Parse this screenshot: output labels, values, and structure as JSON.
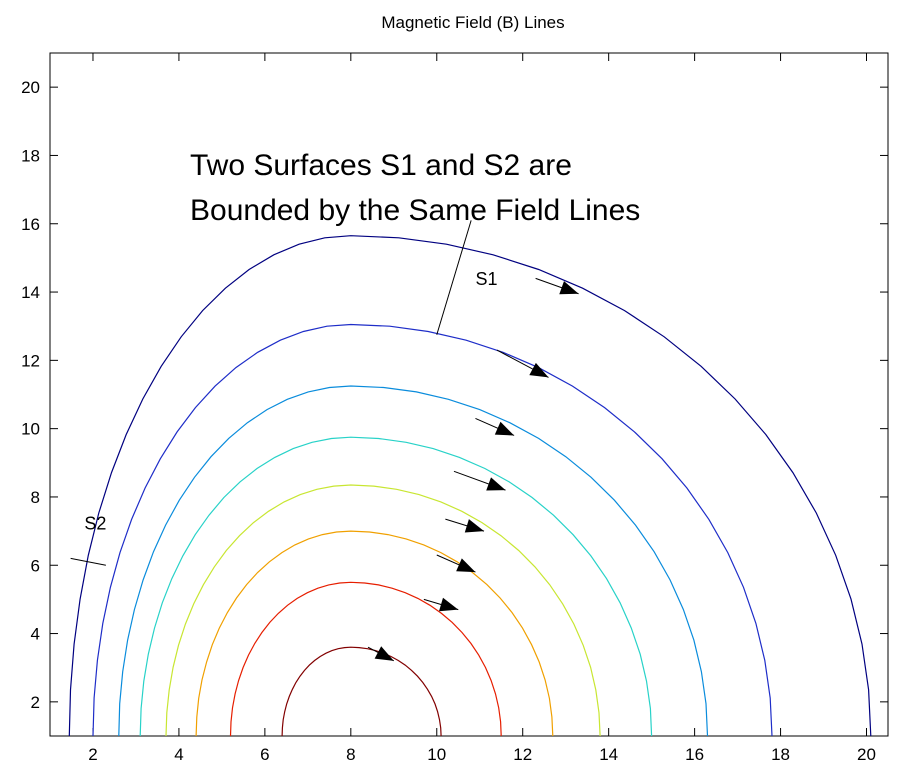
{
  "chart_data": {
    "type": "line",
    "title": "Magnetic Field (B) Lines",
    "xlabel": "",
    "ylabel": "",
    "xlim": [
      1,
      20.5
    ],
    "ylim": [
      1,
      21
    ],
    "xticks": [
      2,
      4,
      6,
      8,
      10,
      12,
      14,
      16,
      18,
      20
    ],
    "yticks": [
      2,
      4,
      6,
      8,
      10,
      12,
      14,
      16,
      18,
      20
    ],
    "grid": false,
    "annotation_lines": [
      "Two Surfaces S1 and S2 are",
      "Bounded by the Same Field Lines"
    ],
    "series": [
      {
        "color": "#000080",
        "apex": [
          8,
          15.65
        ],
        "x_left": 1.45,
        "x_right": 20.1,
        "y_bottom": 1.0
      },
      {
        "color": "#1e2dc8",
        "apex": [
          8,
          13.05
        ],
        "x_left": 2.0,
        "x_right": 17.8,
        "y_bottom": 1.0
      },
      {
        "color": "#0a8cdc",
        "apex": [
          8,
          11.25
        ],
        "x_left": 2.6,
        "x_right": 16.3,
        "y_bottom": 1.0
      },
      {
        "color": "#28d2c8",
        "apex": [
          8,
          9.75
        ],
        "x_left": 3.1,
        "x_right": 15.0,
        "y_bottom": 1.0
      },
      {
        "color": "#c8e632",
        "apex": [
          8,
          8.35
        ],
        "x_left": 3.7,
        "x_right": 13.8,
        "y_bottom": 1.0
      },
      {
        "color": "#f0a000",
        "apex": [
          8,
          7.0
        ],
        "x_left": 4.4,
        "x_right": 12.7,
        "y_bottom": 1.0
      },
      {
        "color": "#e61e00",
        "apex": [
          8,
          5.5
        ],
        "x_left": 5.2,
        "x_right": 11.5,
        "y_bottom": 1.0
      },
      {
        "color": "#820000",
        "apex": [
          8,
          3.6
        ],
        "x_left": 6.4,
        "x_right": 10.1,
        "y_bottom": 1.0
      }
    ],
    "arrows": [
      {
        "from": [
          12.3,
          14.4
        ],
        "to": [
          13.3,
          13.95
        ]
      },
      {
        "from": [
          11.4,
          12.3
        ],
        "to": [
          12.6,
          11.5
        ]
      },
      {
        "from": [
          10.9,
          10.3
        ],
        "to": [
          11.8,
          9.8
        ]
      },
      {
        "from": [
          10.4,
          8.75
        ],
        "to": [
          11.6,
          8.2
        ]
      },
      {
        "from": [
          10.2,
          7.35
        ],
        "to": [
          11.1,
          7.0
        ]
      },
      {
        "from": [
          10.0,
          6.3
        ],
        "to": [
          10.9,
          5.8
        ]
      },
      {
        "from": [
          9.7,
          5.0
        ],
        "to": [
          10.5,
          4.7
        ]
      },
      {
        "from": [
          8.4,
          3.6
        ],
        "to": [
          9.0,
          3.2
        ]
      }
    ],
    "surfaces": [
      {
        "label": "S1",
        "segment": [
          [
            10.8,
            16.1
          ],
          [
            10.0,
            12.75
          ]
        ],
        "label_at": [
          10.9,
          14.2
        ]
      },
      {
        "label": "S2",
        "segment": [
          [
            1.48,
            6.2
          ],
          [
            2.3,
            6.0
          ]
        ],
        "label_at": [
          1.8,
          7.05
        ]
      }
    ]
  }
}
